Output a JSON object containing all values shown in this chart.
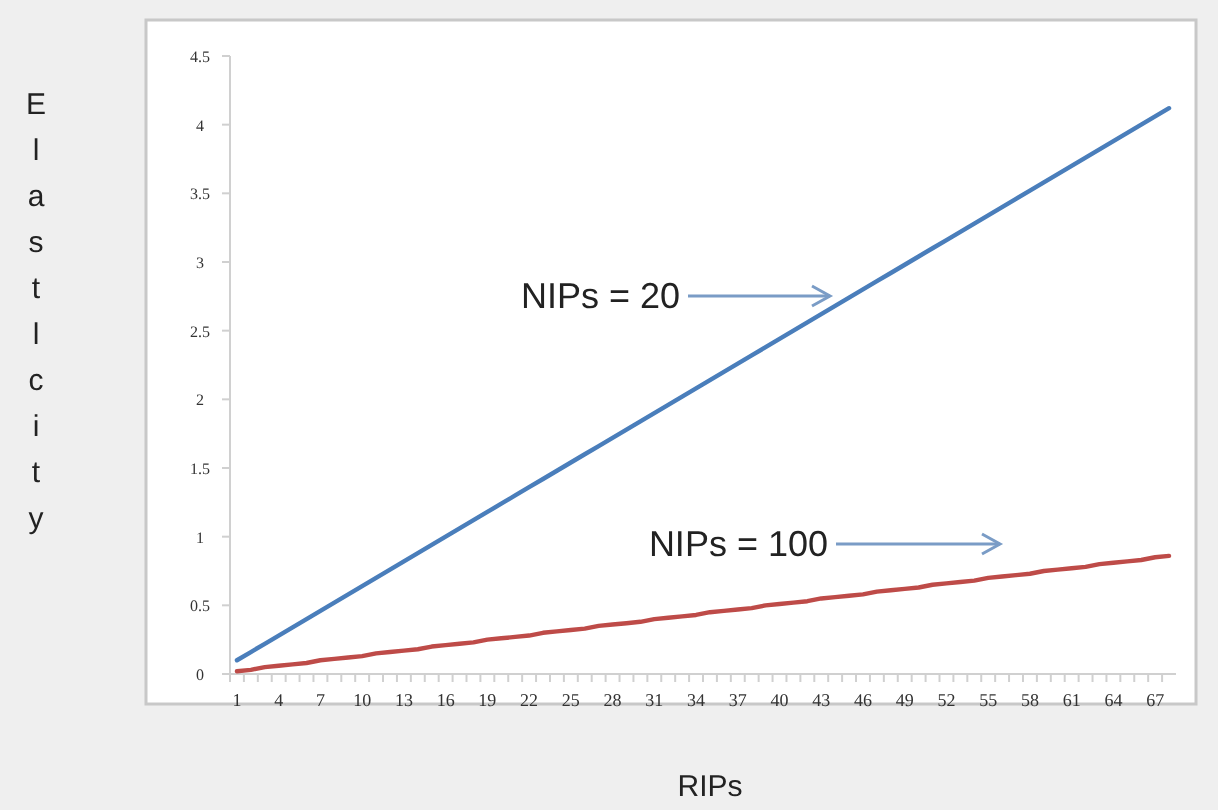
{
  "chart_data": {
    "type": "line",
    "xlabel": "RIPs",
    "ylabel": "Elastlcity",
    "categories": [
      "1",
      null,
      null,
      "4",
      null,
      null,
      "7",
      null,
      null,
      "10",
      null,
      null,
      "13",
      null,
      null,
      "16",
      null,
      null,
      "19",
      null,
      null,
      "22",
      null,
      null,
      "25",
      null,
      null,
      "28",
      null,
      null,
      "31",
      null,
      null,
      "34",
      null,
      null,
      "37",
      null,
      null,
      "40",
      null,
      null,
      "43",
      null,
      null,
      "46",
      null,
      null,
      "49",
      null,
      null,
      "52",
      null,
      null,
      "55",
      null,
      null,
      "58",
      null,
      null,
      "61",
      null,
      null,
      "64",
      null,
      null,
      "67",
      null
    ],
    "series": [
      {
        "color": "#4a7ebb",
        "values": [
          0.1,
          0.16,
          0.22,
          0.28,
          0.34,
          0.4,
          0.46,
          0.52,
          0.58,
          0.64,
          0.7,
          0.76,
          0.82,
          0.88,
          0.94,
          1.0,
          1.06,
          1.12,
          1.18,
          1.24,
          1.3,
          1.36,
          1.42,
          1.48,
          1.54,
          1.6,
          1.66,
          1.72,
          1.78,
          1.84,
          1.9,
          1.96,
          2.02,
          2.08,
          2.14,
          2.2,
          2.26,
          2.32,
          2.38,
          2.44,
          2.5,
          2.56,
          2.62,
          2.68,
          2.74,
          2.8,
          2.86,
          2.92,
          2.98,
          3.04,
          3.1,
          3.16,
          3.22,
          3.28,
          3.34,
          3.4,
          3.46,
          3.52,
          3.58,
          3.64,
          3.7,
          3.76,
          3.82,
          3.88,
          3.94,
          4.0,
          4.06,
          4.12
        ]
      },
      {
        "color": "#be4b48",
        "values": [
          0.02,
          0.03,
          0.05,
          0.06,
          0.07,
          0.08,
          0.1,
          0.11,
          0.12,
          0.13,
          0.15,
          0.16,
          0.17,
          0.18,
          0.2,
          0.21,
          0.22,
          0.23,
          0.25,
          0.26,
          0.27,
          0.28,
          0.3,
          0.31,
          0.32,
          0.33,
          0.35,
          0.36,
          0.37,
          0.38,
          0.4,
          0.41,
          0.42,
          0.43,
          0.45,
          0.46,
          0.47,
          0.48,
          0.5,
          0.51,
          0.52,
          0.53,
          0.55,
          0.56,
          0.57,
          0.58,
          0.6,
          0.61,
          0.62,
          0.63,
          0.65,
          0.66,
          0.67,
          0.68,
          0.7,
          0.71,
          0.72,
          0.73,
          0.75,
          0.76,
          0.77,
          0.78,
          0.8,
          0.81,
          0.82,
          0.83,
          0.85,
          0.86
        ]
      }
    ],
    "ylim": [
      0,
      4.5
    ],
    "yticks": [
      0,
      0.5,
      1,
      1.5,
      2,
      2.5,
      3,
      3.5,
      4,
      4.5
    ],
    "annotations": [
      "NIPs = 20",
      "NIPs = 100"
    ]
  }
}
